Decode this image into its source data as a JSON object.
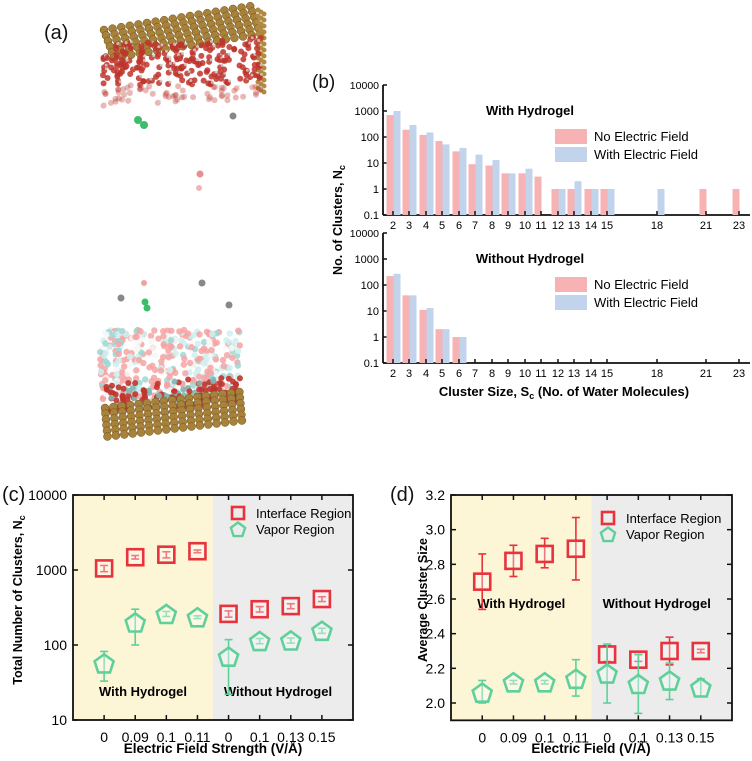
{
  "panels": {
    "a": {
      "label": "(a)"
    },
    "b": {
      "label": "(b)"
    },
    "c": {
      "label": "(c)"
    },
    "d": {
      "label": "(d)"
    }
  },
  "colors": {
    "no_field_bar": "#f7b2b4",
    "with_field_bar": "#c2d3ec",
    "interface_marker": "#e8323c",
    "vapor_marker": "#5fd09a",
    "with_hydrogel_bg": "#fcf5d6",
    "without_hydrogel_bg": "#ececec",
    "gold_atom": "#a8823a",
    "oxygen_atom": "#c0342c",
    "hydrogen_atom": "#e8e8e8",
    "hydrogel_atom": "#9fd6d2"
  },
  "chart_data": [
    {
      "id": "b-top",
      "type": "bar",
      "subtitle": "With Hydrogel",
      "ylabel": "No. of Clusters, N_c",
      "xlabel": "Cluster Size, S_c (No. of Water Molecules)",
      "yscale": "log",
      "ylim": [
        0.1,
        10000
      ],
      "yticks": [
        "10000",
        "1000",
        "100",
        "10",
        "1",
        "0.1"
      ],
      "categories": [
        "2",
        "3",
        "4",
        "5",
        "6",
        "7",
        "8",
        "9",
        "10",
        "11",
        "12",
        "13",
        "14",
        "15",
        "18",
        "21",
        "23"
      ],
      "x_values": [
        2,
        3,
        4,
        5,
        6,
        7,
        8,
        9,
        10,
        11,
        12,
        13,
        14,
        15,
        18,
        21,
        23
      ],
      "legend": [
        "No Electric Field",
        "With Electric Field"
      ],
      "legend_position": "right",
      "series": [
        {
          "name": "No Electric Field",
          "values": [
            700,
            190,
            120,
            70,
            28,
            9,
            8,
            4,
            4,
            3,
            1,
            1,
            1,
            1,
            null,
            1,
            1
          ]
        },
        {
          "name": "With Electric Field",
          "values": [
            1000,
            290,
            150,
            52,
            38,
            21,
            13,
            4,
            6,
            null,
            1,
            2,
            1,
            1,
            1,
            null,
            null
          ]
        }
      ]
    },
    {
      "id": "b-bottom",
      "type": "bar",
      "subtitle": "Without Hydrogel",
      "ylabel": "No. of Clusters, N_c",
      "xlabel": "Cluster Size, S_c (No. of Water Molecules)",
      "yscale": "log",
      "ylim": [
        0.1,
        10000
      ],
      "yticks": [
        "10000",
        "1000",
        "100",
        "10",
        "1",
        "0.1"
      ],
      "categories": [
        "2",
        "3",
        "4",
        "5",
        "6",
        "7",
        "8",
        "9",
        "10",
        "11",
        "12",
        "13",
        "14",
        "15",
        "18",
        "21",
        "23"
      ],
      "x_values": [
        2,
        3,
        4,
        5,
        6,
        7,
        8,
        9,
        10,
        11,
        12,
        13,
        14,
        15,
        18,
        21,
        23
      ],
      "legend": [
        "No Electric Field",
        "With Electric Field"
      ],
      "legend_position": "right",
      "series": [
        {
          "name": "No Electric Field",
          "values": [
            220,
            40,
            11,
            2,
            1,
            null,
            null,
            null,
            null,
            null,
            null,
            null,
            null,
            null,
            null,
            null,
            null
          ]
        },
        {
          "name": "With Electric Field",
          "values": [
            270,
            40,
            13,
            2,
            1,
            null,
            null,
            null,
            null,
            null,
            null,
            null,
            null,
            null,
            null,
            null,
            null
          ]
        }
      ]
    },
    {
      "id": "c",
      "type": "scatter",
      "ylabel": "Total Number of Clusters, N_c",
      "xlabel": "Electric Field Strength (V/Å)",
      "yscale": "log",
      "ylim": [
        10,
        10000
      ],
      "yticks": [
        "10000",
        "1000",
        "100",
        "10"
      ],
      "categories": [
        "0",
        "0.09",
        "0.1",
        "0.11",
        "0",
        "0.1",
        "0.13",
        "0.15"
      ],
      "regions": [
        {
          "name": "With Hydrogel",
          "from": 0,
          "to": 3
        },
        {
          "name": "Without Hydrogel",
          "from": 4,
          "to": 7
        }
      ],
      "legend": [
        "Interface Region",
        "Vapor Region"
      ],
      "legend_position": "top-right",
      "series": [
        {
          "name": "Interface Region",
          "marker": "square",
          "values": [
            1050,
            1480,
            1600,
            1780,
            260,
            300,
            330,
            410
          ],
          "err_low": [
            950,
            1400,
            1450,
            1700,
            235,
            275,
            305,
            380
          ],
          "err_high": [
            1150,
            1560,
            1750,
            1850,
            285,
            325,
            355,
            440
          ]
        },
        {
          "name": "Vapor Region",
          "marker": "pentagon",
          "values": [
            57,
            200,
            260,
            235,
            70,
            113,
            115,
            155
          ],
          "err_low": [
            33,
            100,
            240,
            225,
            22,
            104,
            106,
            143
          ],
          "err_high": [
            82,
            300,
            280,
            245,
            118,
            122,
            124,
            167
          ]
        }
      ]
    },
    {
      "id": "d",
      "type": "scatter",
      "ylabel": "Average Cluster Size",
      "xlabel": "Electric Field (V/Å)",
      "yscale": "linear",
      "ylim": [
        1.9,
        3.2
      ],
      "yticks": [
        "3.2",
        "3.0",
        "2.8",
        "2.6",
        "2.4",
        "2.2",
        "2.0"
      ],
      "ytick_values": [
        3.2,
        3.0,
        2.8,
        2.6,
        2.4,
        2.2,
        2.0
      ],
      "categories": [
        "0",
        "0.09",
        "0.1",
        "0.11",
        "0",
        "0.1",
        "0.13",
        "0.15"
      ],
      "regions": [
        {
          "name": "With Hydrogel",
          "from": 0,
          "to": 3
        },
        {
          "name": "Without Hydrogel",
          "from": 4,
          "to": 7
        }
      ],
      "legend": [
        "Interface Region",
        "Vapor Region"
      ],
      "legend_position": "top-right",
      "series": [
        {
          "name": "Interface Region",
          "marker": "square",
          "values": [
            2.7,
            2.82,
            2.86,
            2.89,
            2.28,
            2.25,
            2.3,
            2.3
          ],
          "err_low": [
            2.54,
            2.73,
            2.78,
            2.71,
            2.24,
            2.24,
            2.22,
            2.29
          ],
          "err_high": [
            2.86,
            2.91,
            2.95,
            3.07,
            2.33,
            2.28,
            2.38,
            2.31
          ]
        },
        {
          "name": "Vapor Region",
          "marker": "pentagon",
          "values": [
            2.06,
            2.12,
            2.12,
            2.14,
            2.17,
            2.11,
            2.13,
            2.09
          ],
          "err_low": [
            2.0,
            2.11,
            2.11,
            2.04,
            2.0,
            1.94,
            2.02,
            2.04
          ],
          "err_high": [
            2.13,
            2.13,
            2.13,
            2.25,
            2.34,
            2.28,
            2.23,
            2.14
          ]
        }
      ]
    }
  ]
}
